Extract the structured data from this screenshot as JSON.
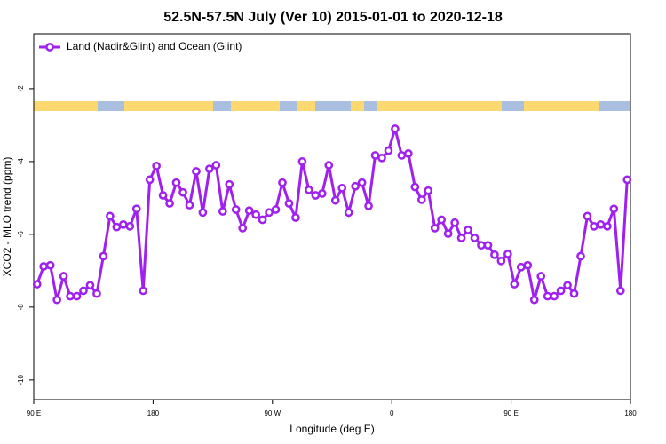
{
  "chart_data": {
    "type": "line",
    "title": "52.5N-57.5N July (Ver 10)   2015-01-01 to 2020-12-18",
    "x_label": "Longitude (deg E)",
    "y_label": "XCO2 - MLO trend (ppm)",
    "x": [
      92.5,
      97.5,
      102.5,
      107.5,
      112.5,
      117.5,
      122.5,
      127.5,
      132.5,
      137.5,
      142.5,
      147.5,
      152.5,
      157.5,
      162.5,
      167.5,
      172.5,
      177.5,
      182.5,
      187.5,
      192.5,
      197.5,
      202.5,
      207.5,
      212.5,
      217.5,
      222.5,
      227.5,
      232.5,
      237.5,
      242.5,
      247.5,
      252.5,
      257.5,
      262.5,
      267.5,
      272.5,
      277.5,
      282.5,
      287.5,
      292.5,
      297.5,
      302.5,
      307.5,
      312.5,
      317.5,
      322.5,
      327.5,
      332.5,
      337.5,
      342.5,
      347.5,
      352.5,
      357.5,
      362.5,
      367.5,
      372.5,
      377.5,
      382.5,
      387.5,
      392.5,
      397.5,
      402.5,
      407.5,
      412.5,
      417.5,
      422.5,
      427.5,
      432.5,
      437.5,
      442.5,
      447.5,
      452.5,
      457.5,
      462.5,
      467.5,
      472.5,
      477.5,
      482.5,
      487.5,
      492.5,
      497.5,
      502.5,
      507.5,
      512.5,
      517.5,
      522.5,
      527.5,
      532.5,
      537.5
    ],
    "series": [
      {
        "name": "Land (Nadir&Glint) and Ocean (Glint)",
        "color": "#a020f0",
        "values": [
          -7.37,
          -6.88,
          -6.85,
          -7.8,
          -7.15,
          -7.7,
          -7.7,
          -7.55,
          -7.4,
          -7.63,
          -6.6,
          -5.5,
          -5.8,
          -5.73,
          -5.78,
          -5.3,
          -7.55,
          -4.5,
          -4.12,
          -4.93,
          -5.15,
          -4.58,
          -4.85,
          -5.2,
          -4.27,
          -5.4,
          -4.2,
          -4.1,
          -5.37,
          -4.63,
          -5.32,
          -5.83,
          -5.35,
          -5.46,
          -5.6,
          -5.4,
          -5.32,
          -4.58,
          -5.15,
          -5.54,
          -4.0,
          -4.78,
          -4.93,
          -4.88,
          -4.1,
          -5.07,
          -4.73,
          -5.4,
          -4.68,
          -4.58,
          -5.22,
          -3.83,
          -3.9,
          -3.7,
          -3.1,
          -3.83,
          -3.78,
          -4.7,
          -5.05,
          -4.8,
          -5.83,
          -5.6,
          -5.98,
          -5.68,
          -6.1,
          -5.88,
          -6.1,
          -6.3,
          -6.3,
          -6.56,
          -6.73,
          -6.54,
          -7.37,
          -6.9,
          -6.85,
          -7.8,
          -7.15,
          -7.7,
          -7.7,
          -7.55,
          -7.4,
          -7.63,
          -6.6,
          -5.5,
          -5.78,
          -5.73,
          -5.78,
          -5.3,
          -7.55,
          -4.5
        ]
      }
    ],
    "xlim": [
      90,
      540
    ],
    "xticks": [
      {
        "value": 90,
        "label": "90 E"
      },
      180,
      {
        "value": 270,
        "label": "90 W"
      },
      {
        "value": 360,
        "label": "0"
      },
      {
        "value": 450,
        "label": "90 E"
      },
      {
        "value": 540,
        "label": "180"
      }
    ],
    "ylim": [
      -10.54,
      -0.49
    ],
    "yticks": [
      -2,
      -4,
      -6,
      -8,
      -10
    ],
    "legend": "top-left"
  }
}
